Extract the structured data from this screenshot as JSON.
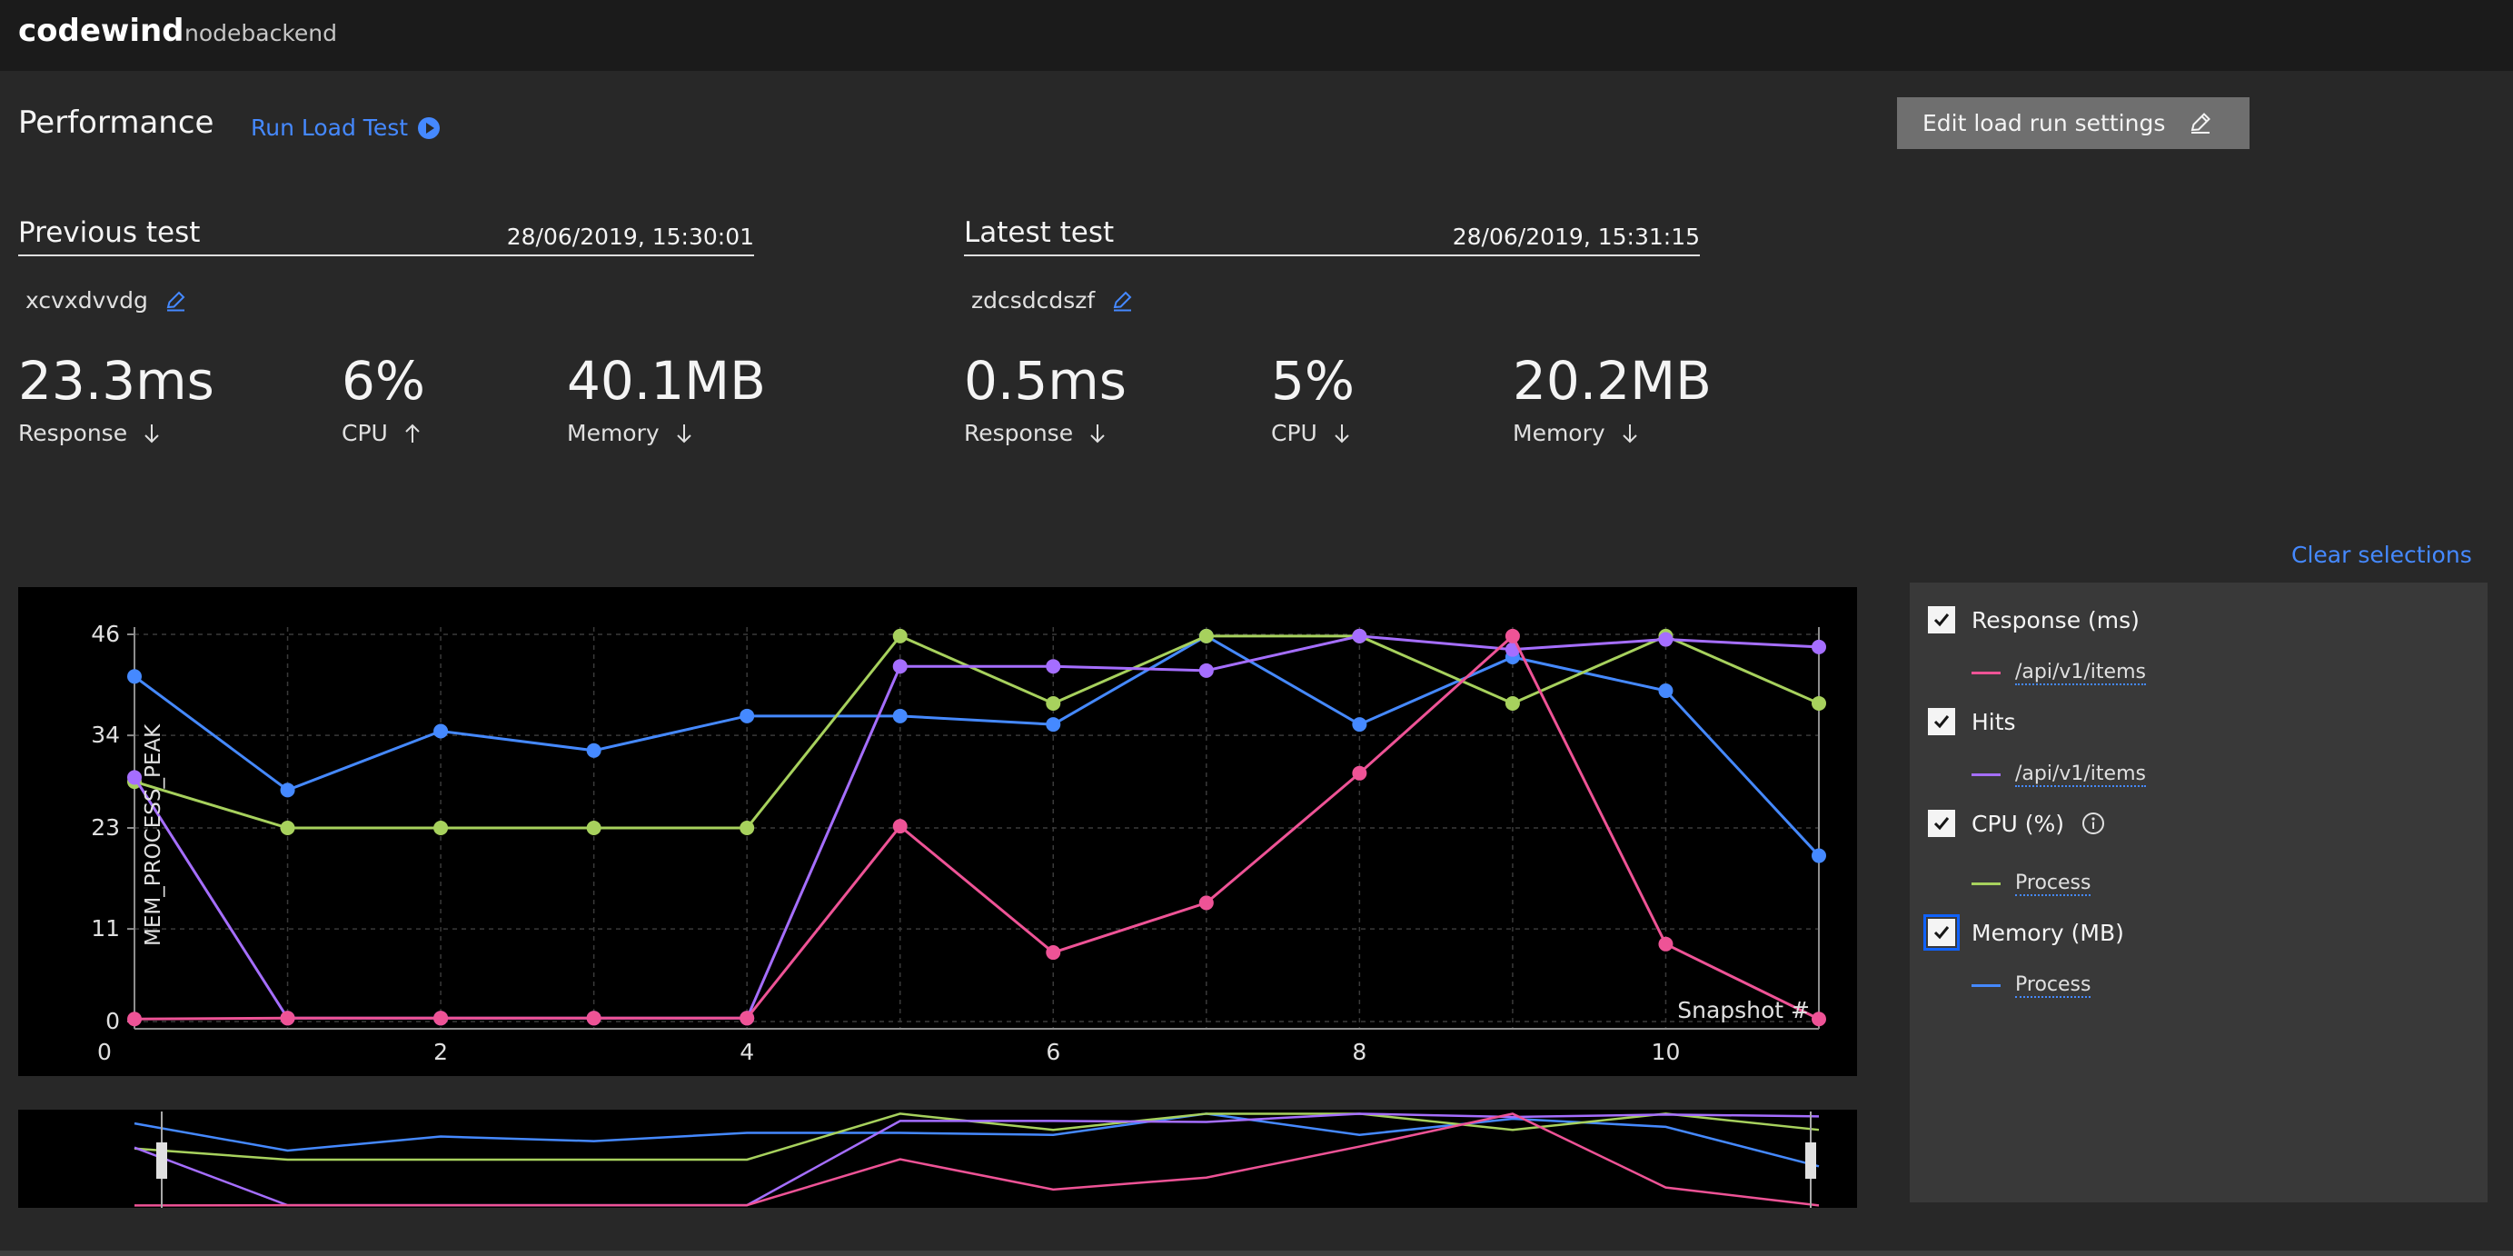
{
  "app": {
    "brand": "codewind",
    "project": "nodebackend"
  },
  "header": {
    "title": "Performance",
    "run_load_test": "Run Load Test",
    "edit_settings": "Edit load run settings"
  },
  "previous": {
    "label": "Previous test",
    "date": "28/06/2019, 15:30:01",
    "name": "xcvxdvvdg",
    "metrics": [
      {
        "value": "23.3ms",
        "label": "Response",
        "trend": "down"
      },
      {
        "value": "6%",
        "label": "CPU",
        "trend": "up"
      },
      {
        "value": "40.1MB",
        "label": "Memory",
        "trend": "down"
      }
    ]
  },
  "latest": {
    "label": "Latest test",
    "date": "28/06/2019, 15:31:15",
    "name": "zdcsdcdszf",
    "metrics": [
      {
        "value": "0.5ms",
        "label": "Response",
        "trend": "down"
      },
      {
        "value": "5%",
        "label": "CPU",
        "trend": "down"
      },
      {
        "value": "20.2MB",
        "label": "Memory",
        "trend": "down"
      }
    ]
  },
  "legend": {
    "clear_label": "Clear selections",
    "groups": [
      {
        "label": "Response (ms)",
        "checked": true,
        "sub": "/api/v1/items",
        "color": "#ee5396"
      },
      {
        "label": "Hits",
        "checked": true,
        "sub": "/api/v1/items",
        "color": "#a56eff"
      },
      {
        "label": "CPU (%)",
        "checked": true,
        "sub": "Process",
        "color": "#a7d15d",
        "info": true
      },
      {
        "label": "Memory (MB)",
        "checked": true,
        "sub": "Process",
        "color": "#4589ff",
        "focused": true
      }
    ]
  },
  "chart_data": {
    "type": "line",
    "ylabel": "MEM_PROCESS_PEAK",
    "xlabel": "Snapshot #",
    "x": [
      0,
      1,
      2,
      3,
      4,
      5,
      6,
      7,
      8,
      9,
      10,
      11
    ],
    "xticks": [
      0,
      2,
      4,
      6,
      8,
      10
    ],
    "yticks": [
      0,
      11,
      23,
      34,
      46
    ],
    "xlim": [
      0,
      11
    ],
    "ylim": [
      0,
      46
    ],
    "grid": true,
    "series": [
      {
        "color": "#4589ff",
        "values": [
          41,
          27.5,
          34.5,
          32.2,
          36.3,
          36.3,
          35.3,
          45.8,
          35.3,
          43.3,
          39.3,
          19.7
        ]
      },
      {
        "color": "#a7d15d",
        "values": [
          28.5,
          23,
          23,
          23,
          23,
          45.8,
          37.8,
          45.8,
          45.8,
          37.8,
          45.8,
          37.8
        ]
      },
      {
        "color": "#a56eff",
        "values": [
          29,
          0.4,
          0.4,
          0.4,
          0.4,
          42.2,
          42.2,
          41.7,
          45.8,
          44.2,
          45.4,
          44.5
        ]
      },
      {
        "color": "#ee5396",
        "values": [
          0.3,
          0.4,
          0.4,
          0.4,
          0.4,
          23.2,
          8.2,
          14.1,
          29.5,
          45.8,
          9.2,
          0.3
        ]
      }
    ]
  }
}
